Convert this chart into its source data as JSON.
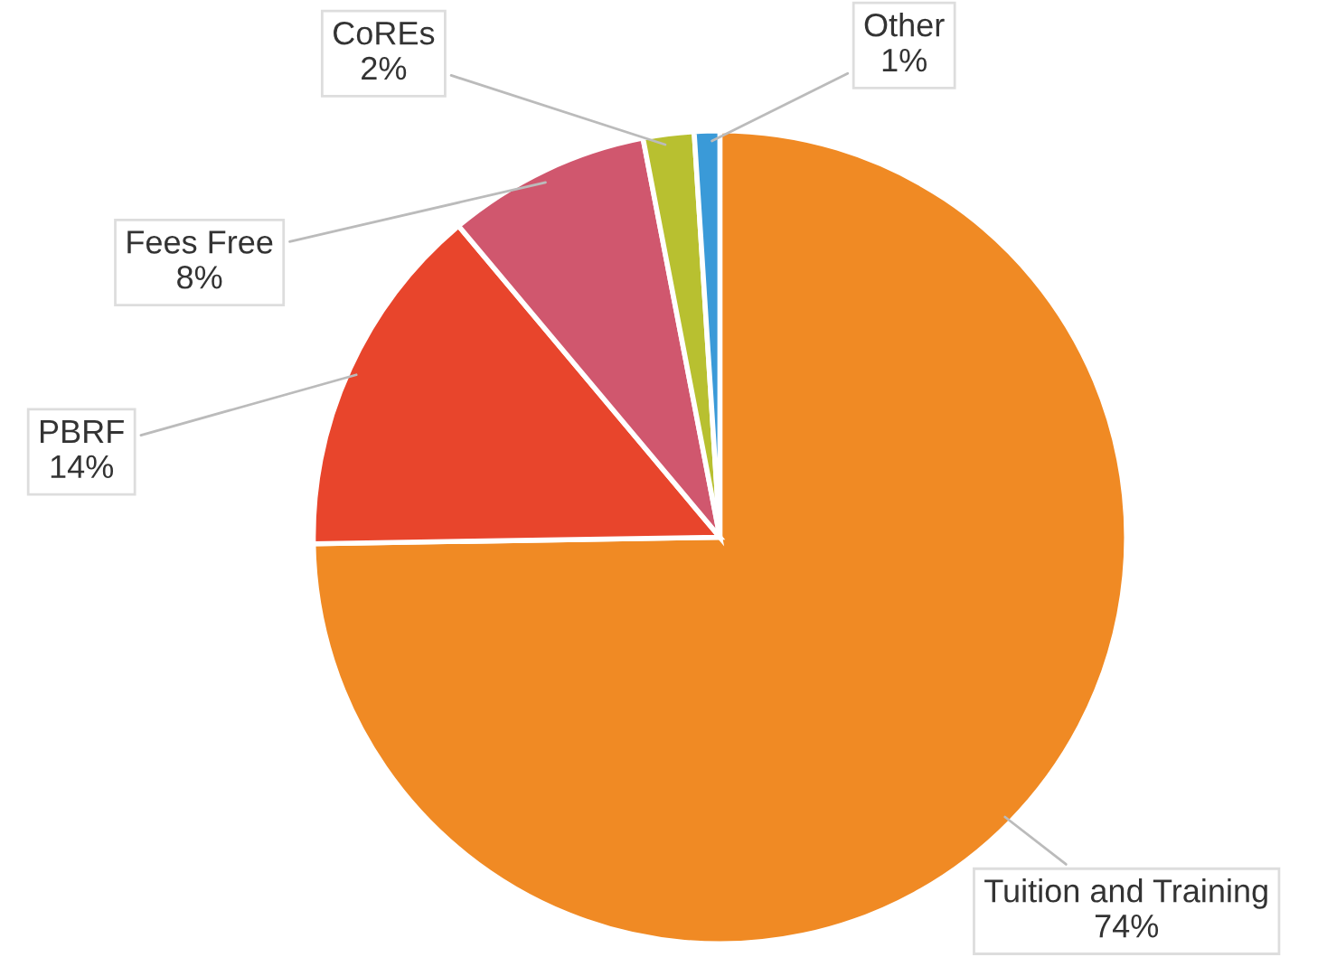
{
  "chart_data": {
    "type": "pie",
    "categories": [
      "Tuition and Training",
      "PBRF",
      "Fees Free",
      "CoREs",
      "Other"
    ],
    "values": [
      74,
      14,
      8,
      2,
      1
    ],
    "colors": [
      "#f08a24",
      "#e8452c",
      "#d0576e",
      "#b8c030",
      "#3a9ad8"
    ],
    "value_labels": [
      "74%",
      "14%",
      "8%",
      "2%",
      "1%"
    ]
  }
}
